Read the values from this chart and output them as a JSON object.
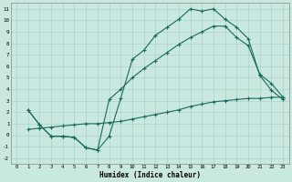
{
  "xlabel": "Humidex (Indice chaleur)",
  "bg_color": "#c8e8e0",
  "line_color": "#1a6b5a",
  "grid_color": "#a8ccc8",
  "xlim": [
    -0.5,
    23.5
  ],
  "ylim": [
    -2.5,
    11.5
  ],
  "xticks": [
    0,
    1,
    2,
    3,
    4,
    5,
    6,
    7,
    8,
    9,
    10,
    11,
    12,
    13,
    14,
    15,
    16,
    17,
    18,
    19,
    20,
    21,
    22,
    23
  ],
  "yticks": [
    -2,
    -1,
    0,
    1,
    2,
    3,
    4,
    5,
    6,
    7,
    8,
    9,
    10,
    11
  ],
  "line1_x": [
    1,
    2,
    3,
    4,
    5,
    6,
    7,
    8,
    9,
    10,
    11,
    12,
    13,
    14,
    15,
    16,
    17,
    18,
    19,
    20,
    21,
    22,
    23
  ],
  "line1_y": [
    2.2,
    0.9,
    -0.1,
    -0.1,
    -0.2,
    -1.1,
    -1.3,
    -0.1,
    3.2,
    6.6,
    7.4,
    8.7,
    9.4,
    10.1,
    11.0,
    10.8,
    11.0,
    10.1,
    9.4,
    8.4,
    5.2,
    3.9,
    3.1
  ],
  "line2_x": [
    1,
    2,
    3,
    4,
    5,
    6,
    7,
    8,
    9,
    10,
    11,
    12,
    13,
    14,
    15,
    16,
    17,
    18,
    19,
    20,
    21,
    22,
    23
  ],
  "line2_y": [
    2.2,
    0.9,
    -0.1,
    -0.1,
    -0.2,
    -1.1,
    -1.3,
    3.1,
    4.0,
    5.0,
    5.8,
    6.5,
    7.2,
    7.9,
    8.5,
    9.0,
    9.5,
    9.5,
    8.5,
    7.8,
    5.3,
    4.5,
    3.3
  ],
  "line3_x": [
    1,
    2,
    3,
    4,
    5,
    6,
    7,
    8,
    9,
    10,
    11,
    12,
    13,
    14,
    15,
    16,
    17,
    18,
    19,
    20,
    21,
    22,
    23
  ],
  "line3_y": [
    0.5,
    0.6,
    0.7,
    0.8,
    0.9,
    1.0,
    1.0,
    1.1,
    1.2,
    1.4,
    1.6,
    1.8,
    2.0,
    2.2,
    2.5,
    2.7,
    2.9,
    3.0,
    3.1,
    3.2,
    3.2,
    3.3,
    3.3
  ]
}
